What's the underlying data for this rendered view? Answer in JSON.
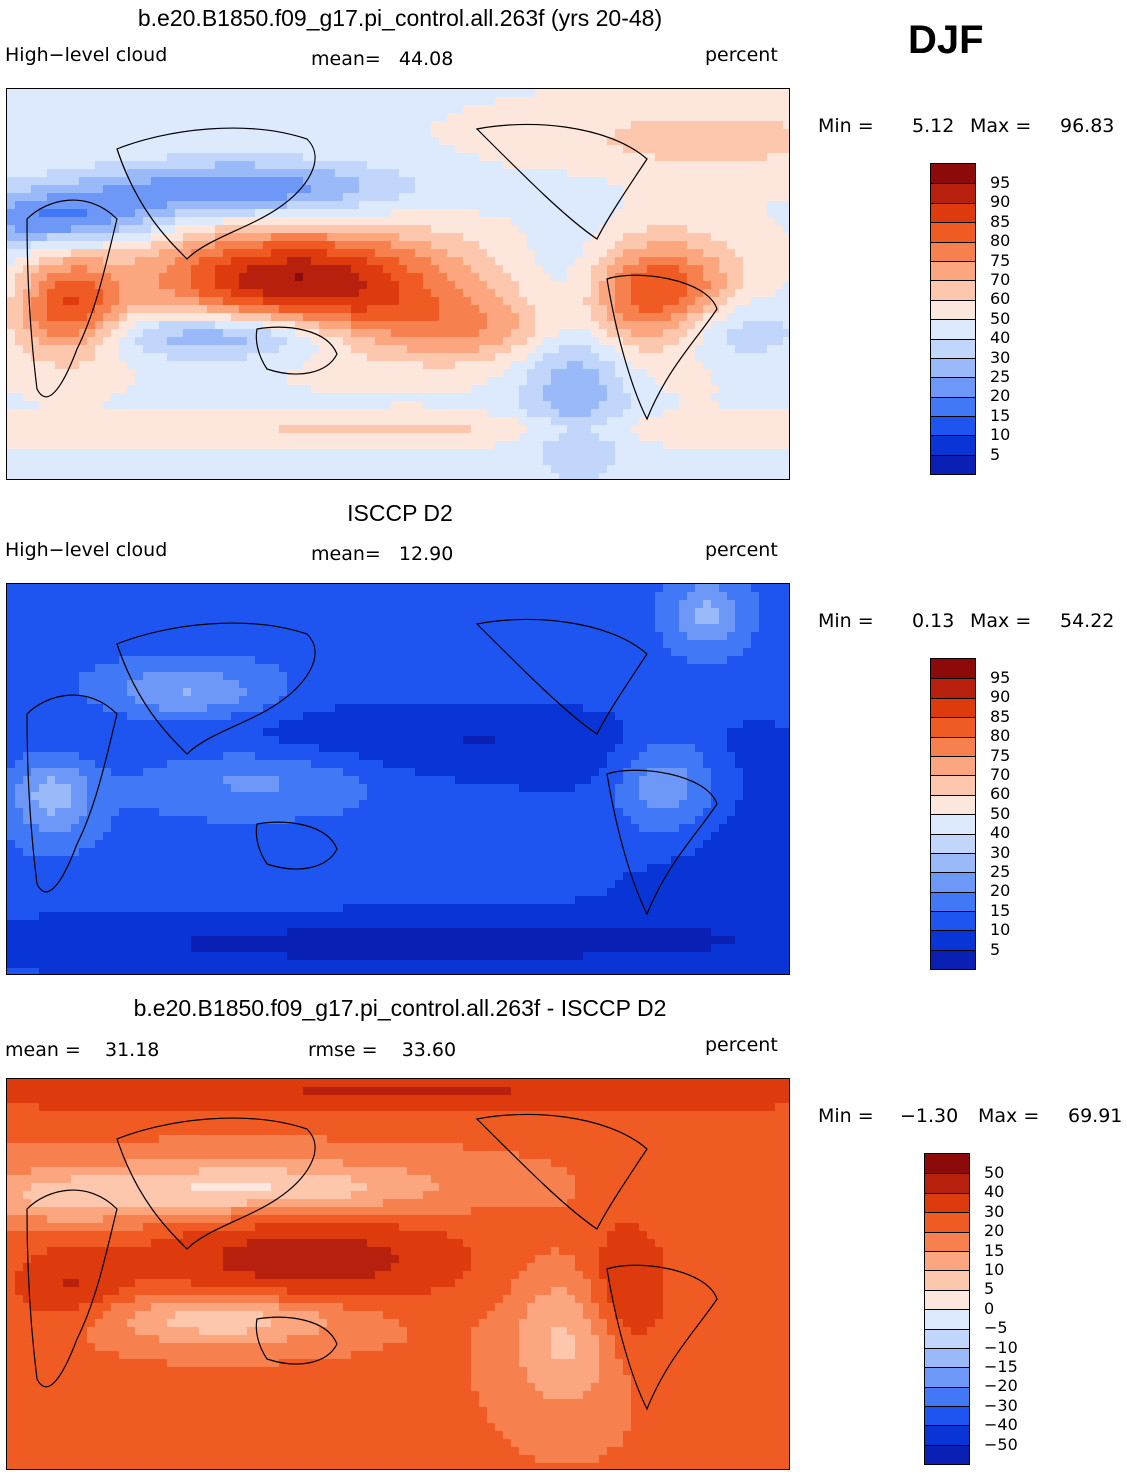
{
  "season": "DJF",
  "colors": {
    "pos": [
      "#000080",
      "#0a1fb4",
      "#0a35d6",
      "#1e55f0",
      "#4178f5",
      "#6e98f7",
      "#9ab9f9",
      "#c2d6fb",
      "#dde9fc",
      "#fde7dc",
      "#fcc7ac",
      "#fba67e",
      "#f6804e",
      "#f05a23",
      "#dd3a0d",
      "#b7200c",
      "#8c0a0a"
    ]
  },
  "panels": [
    {
      "title": "b.e20.B1850.f09_g17.pi_control.all.263f (yrs 20-48)",
      "left": "High−level cloud",
      "center": "mean=   44.08",
      "right": "percent",
      "min_label": "Min =",
      "min_value": "5.12",
      "max_label": "Max =",
      "max_value": "96.83",
      "legend": [
        "95",
        "90",
        "85",
        "80",
        "75",
        "70",
        "60",
        "50",
        "40",
        "30",
        "25",
        "20",
        "15",
        "10",
        "5"
      ],
      "field": "model"
    },
    {
      "title": "ISCCP D2",
      "left": "High−level cloud",
      "center": "mean=   12.90",
      "right": "percent",
      "min_label": "Min =",
      "min_value": "0.13",
      "max_label": "Max =",
      "max_value": "54.22",
      "legend": [
        "95",
        "90",
        "85",
        "80",
        "75",
        "70",
        "60",
        "50",
        "40",
        "30",
        "25",
        "20",
        "15",
        "10",
        "5"
      ],
      "field": "obs"
    },
    {
      "title": "b.e20.B1850.f09_g17.pi_control.all.263f - ISCCP D2",
      "left": "mean =    31.18",
      "center": "rmse =    33.60",
      "right": "percent",
      "min_label": "Min =",
      "min_value": "−1.30",
      "max_label": "Max =",
      "max_value": "69.91",
      "legend": [
        "50",
        "40",
        "30",
        "20",
        "15",
        "10",
        "5",
        "0",
        "−5",
        "−10",
        "−15",
        "−20",
        "−30",
        "−40",
        "−50"
      ],
      "field": "diff"
    }
  ]
}
